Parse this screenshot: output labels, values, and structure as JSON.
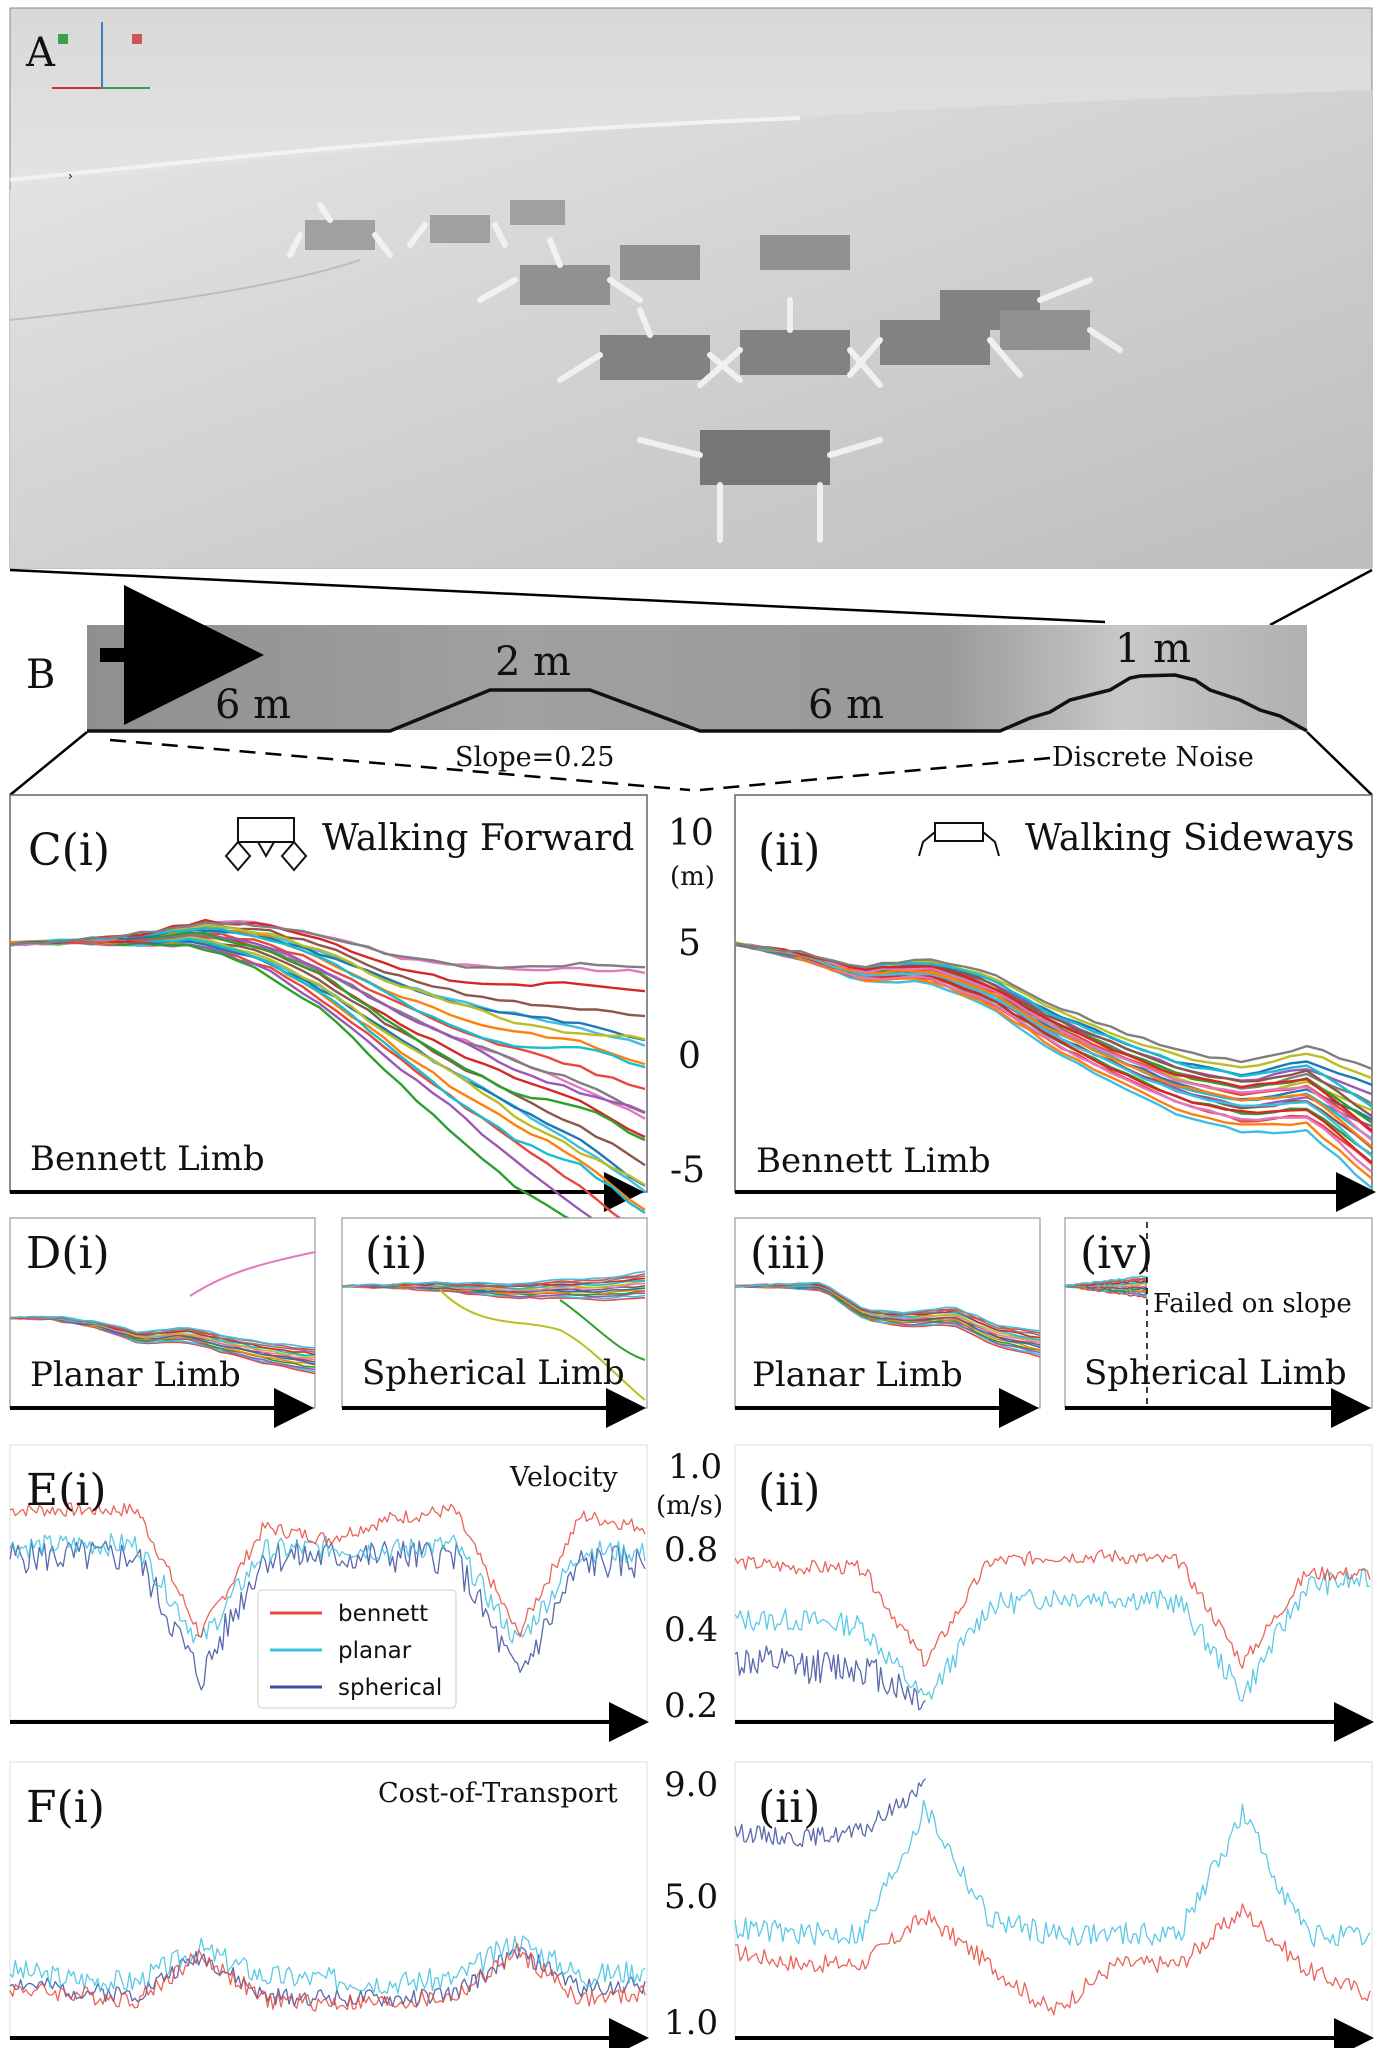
{
  "panel_labels": {
    "a": "A",
    "b": "B",
    "c_i": "C(i)",
    "c_ii": "(ii)",
    "d_i": "D(i)",
    "d_ii": "(ii)",
    "d_iii": "(iii)",
    "d_iv": "(iv)",
    "e_i": "E(i)",
    "e_ii": "(ii)",
    "f_i": "F(i)",
    "f_ii": "(ii)"
  },
  "terrain": {
    "segments": [
      "6 m",
      "2 m",
      "6 m",
      "1 m"
    ],
    "slope_label": "Slope=0.25",
    "noise_label": "Discrete Noise"
  },
  "panel_c": {
    "title_forward": "Walking Forward",
    "title_sideways": "Walking Sideways",
    "label_left": "Bennett Limb",
    "label_right": "Bennett Limb",
    "y_unit": "(m)",
    "y_ticks": [
      "10",
      "5",
      "0",
      "-5"
    ]
  },
  "panel_d": {
    "labels": [
      "Planar Limb",
      "Spherical Limb",
      "Planar Limb",
      "Spherical Limb"
    ],
    "failed_label": "Failed on slope"
  },
  "panel_e": {
    "title": "Velocity",
    "y_ticks_top": "1.0",
    "y_unit": "(m/s)",
    "y_ticks": [
      "0.8",
      "0.4",
      "0.2"
    ],
    "legend": [
      "bennett",
      "planar",
      "spherical"
    ]
  },
  "panel_f": {
    "title": "Cost-of-Transport",
    "y_ticks": [
      "9.0",
      "5.0",
      "1.0"
    ]
  },
  "colors": {
    "bennett": "#e8483b",
    "planar": "#3fbfe0",
    "spherical": "#3b4fa0",
    "terrain_bg": "#9e9e9e"
  },
  "chart_data": [
    {
      "type": "line",
      "name_ref": "C(i) Walking Forward — Bennett Limb",
      "x": [
        0,
        0.1,
        0.2,
        0.3,
        0.4,
        0.5,
        0.6,
        0.7,
        0.8,
        0.9,
        1.0
      ],
      "series": [
        {
          "values": [
            5.5,
            5.6,
            5.7,
            6.0,
            5.6,
            4.5,
            3.0,
            1.8,
            0.8,
            0.0,
            -1.0
          ]
        },
        {
          "values": [
            5.5,
            5.6,
            5.7,
            6.1,
            5.8,
            4.9,
            3.6,
            2.7,
            2.0,
            1.3,
            0.5
          ]
        },
        {
          "values": [
            5.5,
            5.6,
            5.7,
            5.9,
            5.3,
            4.0,
            2.2,
            0.8,
            -0.8,
            -2.0,
            -3.0
          ]
        },
        {
          "values": [
            5.5,
            5.6,
            5.7,
            5.8,
            5.0,
            3.6,
            1.4,
            -0.6,
            -2.2,
            -3.0,
            -4.8
          ]
        },
        {
          "values": [
            5.5,
            5.6,
            5.7,
            6.0,
            5.5,
            4.2,
            2.6,
            1.2,
            0.2,
            -0.6,
            -2.0
          ]
        },
        {
          "values": [
            5.5,
            5.6,
            5.7,
            5.9,
            5.4,
            4.3,
            2.9,
            1.6,
            0.6,
            -0.2,
            -1.5
          ]
        }
      ],
      "ylim": [
        -5,
        10
      ]
    },
    {
      "type": "line",
      "name_ref": "C(ii) Walking Sideways — Bennett Limb",
      "x": [
        0,
        0.1,
        0.2,
        0.3,
        0.4,
        0.5,
        0.6,
        0.7,
        0.8,
        0.9,
        1.0
      ],
      "series": [
        {
          "values": [
            5.5,
            5.0,
            4.2,
            4.4,
            3.5,
            1.8,
            0.6,
            -0.6,
            -1.2,
            -0.8,
            -2.8
          ]
        },
        {
          "values": [
            5.5,
            5.0,
            4.1,
            4.2,
            3.2,
            1.4,
            0.0,
            -1.2,
            -1.8,
            -1.6,
            -4.0
          ]
        },
        {
          "values": [
            5.5,
            5.0,
            4.2,
            4.5,
            3.7,
            2.1,
            0.9,
            -0.2,
            -0.8,
            -0.2,
            -1.4
          ]
        }
      ],
      "ylim": [
        -5,
        10
      ]
    },
    {
      "type": "line",
      "name_ref": "E Velocity",
      "ylabel": "(m/s)",
      "ylim": [
        0.2,
        1.0
      ],
      "panels": [
        {
          "series": [
            {
              "name": "bennett",
              "values": [
                0.88,
                0.88,
                0.88,
                0.45,
                0.82,
                0.78,
                0.85,
                0.88,
                0.45,
                0.86,
                0.82
              ]
            },
            {
              "name": "planar",
              "values": [
                0.75,
                0.76,
                0.76,
                0.42,
                0.74,
                0.75,
                0.74,
                0.76,
                0.42,
                0.74,
                0.73
              ]
            },
            {
              "name": "spherical",
              "values": [
                0.72,
                0.72,
                0.72,
                0.3,
                0.72,
                0.72,
                0.72,
                0.72,
                0.3,
                0.7,
                0.7
              ]
            }
          ]
        },
        {
          "series": [
            {
              "name": "bennett",
              "values": [
                0.7,
                0.68,
                0.68,
                0.35,
                0.7,
                0.72,
                0.72,
                0.7,
                0.35,
                0.66,
                0.66
              ]
            },
            {
              "name": "planar",
              "values": [
                0.5,
                0.5,
                0.48,
                0.22,
                0.55,
                0.58,
                0.58,
                0.56,
                0.24,
                0.62,
                0.64
              ]
            },
            {
              "name": "spherical",
              "values": [
                0.36,
                0.34,
                0.34,
                0.22
              ]
            }
          ]
        }
      ]
    },
    {
      "type": "line",
      "name_ref": "F Cost-of-Transport",
      "ylim": [
        1.0,
        9.0
      ],
      "panels": [
        {
          "series": [
            {
              "name": "bennett",
              "values": [
                2.2,
                2.0,
                1.8,
                3.3,
                1.8,
                1.7,
                1.7,
                1.9,
                3.4,
                1.8,
                2.0
              ]
            },
            {
              "name": "planar",
              "values": [
                2.8,
                2.5,
                2.4,
                3.5,
                2.6,
                2.5,
                2.4,
                2.5,
                3.8,
                2.6,
                2.8
              ]
            },
            {
              "name": "spherical",
              "values": [
                2.4,
                2.1,
                2.0,
                3.3,
                1.9,
                1.9,
                1.8,
                2.0,
                3.4,
                2.2,
                2.3
              ]
            }
          ]
        },
        {
          "series": [
            {
              "name": "bennett",
              "values": [
                3.4,
                3.0,
                3.0,
                4.6,
                3.0,
                1.4,
                3.0,
                3.0,
                4.8,
                2.8,
                2.0
              ]
            },
            {
              "name": "planar",
              "values": [
                4.2,
                4.0,
                4.0,
                8.2,
                4.5,
                4.0,
                4.0,
                4.0,
                8.0,
                4.0,
                3.8
              ]
            },
            {
              "name": "spherical",
              "values": [
                7.4,
                7.2,
                7.4,
                9.0
              ]
            }
          ]
        }
      ]
    }
  ]
}
